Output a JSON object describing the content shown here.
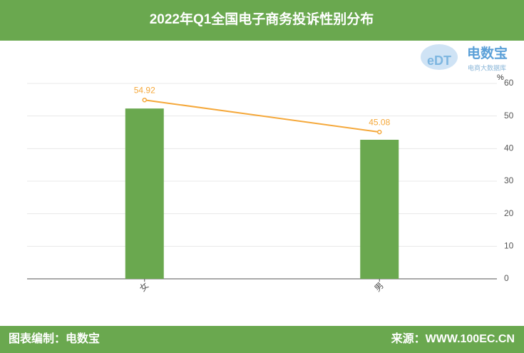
{
  "header": {
    "title": "2022年Q1全国电子商务投诉性别分布"
  },
  "logo": {
    "mark": "eDT",
    "name": "电数宝",
    "tagline": "电商大数据库"
  },
  "chart_data": {
    "type": "bar",
    "categories": [
      "女",
      "男"
    ],
    "series": [
      {
        "type": "bar",
        "color": "#6aa84f",
        "values": [
          52.3,
          42.7
        ]
      },
      {
        "type": "line",
        "color": "#f5a83a",
        "values": [
          54.92,
          45.08
        ]
      }
    ],
    "ylim": [
      0,
      60
    ],
    "yticks": [
      0,
      10,
      20,
      30,
      40,
      50,
      60
    ],
    "y_unit": "%",
    "grid": true
  },
  "footer": {
    "left": "图表编制：电数宝",
    "right": "来源：WWW.100EC.CN"
  }
}
